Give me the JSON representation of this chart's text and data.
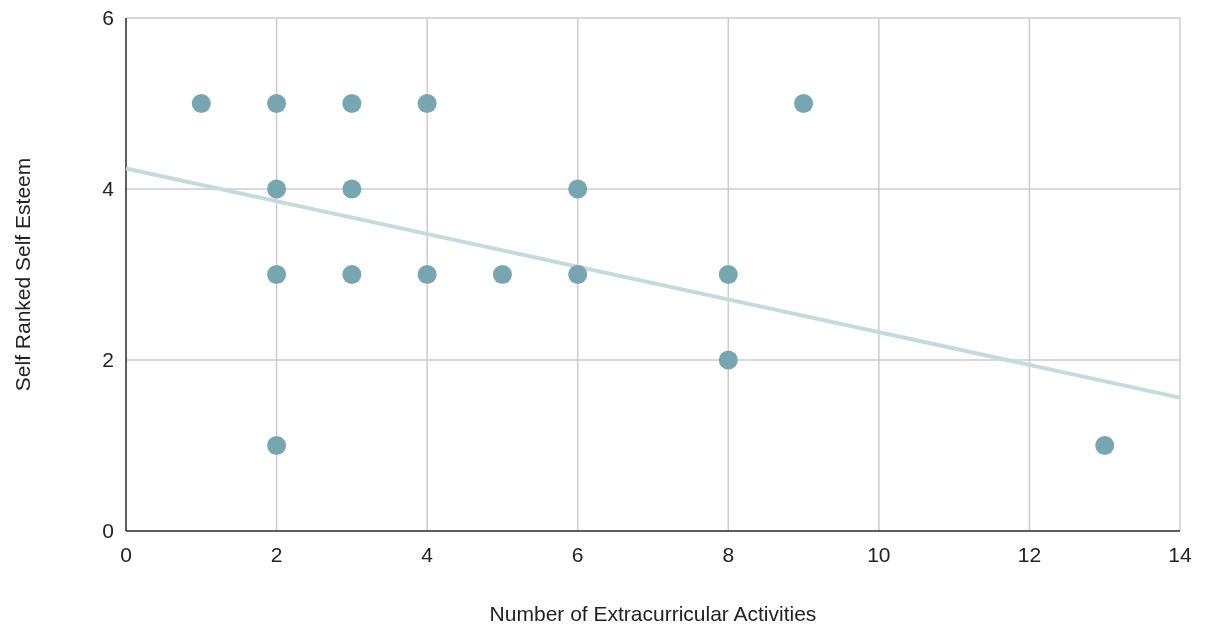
{
  "chart_data": {
    "type": "scatter",
    "xlabel": "Number of Extracurricular Activities",
    "ylabel": "Self Ranked Self Esteem",
    "xlim": [
      0,
      14
    ],
    "xticks": [
      0,
      2,
      4,
      6,
      8,
      10,
      12,
      14
    ],
    "ylim": [
      0,
      6
    ],
    "yticks": [
      0,
      2,
      4,
      6
    ],
    "grid": true,
    "series": [
      {
        "color": "#77a6b0",
        "marker": "circle",
        "x": [
          1,
          2,
          3,
          4,
          9,
          2,
          3,
          6,
          2,
          3,
          4,
          5,
          6,
          8,
          8,
          2,
          13
        ],
        "values": [
          5,
          5,
          5,
          5,
          5,
          4,
          4,
          4,
          3,
          3,
          3,
          3,
          3,
          3,
          2,
          1,
          1
        ]
      },
      {
        "type": "line",
        "color": "#c5dadd",
        "x": [
          0,
          14
        ],
        "values": [
          4.24,
          1.56
        ]
      }
    ]
  }
}
